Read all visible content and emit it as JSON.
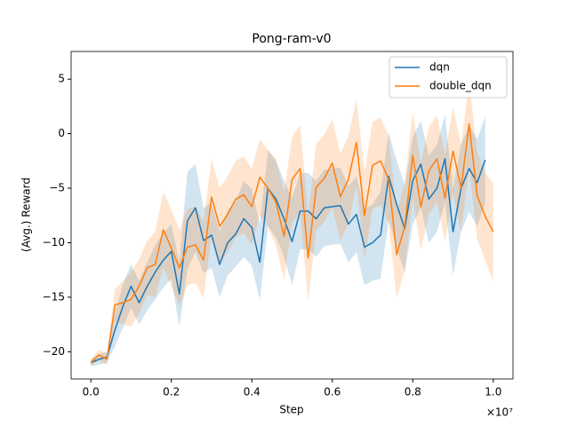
{
  "chart_data": {
    "type": "line",
    "title": "Pong-ram-v0",
    "xlabel": "Step",
    "ylabel": "(Avg.) Reward",
    "x_offset_label": "×10⁷",
    "x": [
      0,
      0.02,
      0.04,
      0.06,
      0.08,
      0.1,
      0.12,
      0.14,
      0.16,
      0.18,
      0.2,
      0.22,
      0.24,
      0.26,
      0.28,
      0.3,
      0.32,
      0.34,
      0.36,
      0.38,
      0.4,
      0.42,
      0.44,
      0.46,
      0.48,
      0.5,
      0.52,
      0.54,
      0.56,
      0.58,
      0.6,
      0.62,
      0.64,
      0.66,
      0.68,
      0.7,
      0.72,
      0.74,
      0.76,
      0.78,
      0.8,
      0.82,
      0.84,
      0.86,
      0.88,
      0.9,
      0.92,
      0.94,
      0.96,
      0.98,
      1.0
    ],
    "series": [
      {
        "name": "dqn",
        "color": "#1f77b4",
        "values": [
          -21,
          -20.7,
          -20.5,
          -18,
          -15.8,
          -14,
          -15.5,
          -14,
          -12.7,
          -11.6,
          -10.8,
          -14.7,
          -8,
          -6.8,
          -9.8,
          -9.3,
          -12,
          -10,
          -9.2,
          -7.8,
          -8.6,
          -11.8,
          -5,
          -6,
          -7.8,
          -9.9,
          -7.1,
          -7.1,
          -7.8,
          -6.8,
          -6.7,
          -6.6,
          -8.3,
          -7.4,
          -10.4,
          -10,
          -9.3,
          -3.9,
          -6.5,
          -8.7,
          -4.3,
          -2.8,
          -6,
          -5,
          -2.3,
          -9,
          -5,
          -3.2,
          -4.5,
          -2.4,
          null
        ],
        "lower": [
          -21.3,
          -21.2,
          -21,
          -19.5,
          -17.8,
          -16,
          -17.5,
          -16.2,
          -15.2,
          -14.1,
          -13.3,
          -17.7,
          -12.5,
          -10.8,
          -12.8,
          -12.3,
          -15,
          -13,
          -12.2,
          -11.3,
          -12.1,
          -15.3,
          -8.5,
          -9.5,
          -11.3,
          -13.9,
          -10.6,
          -10.6,
          -11.3,
          -10.3,
          -10.2,
          -10.1,
          -11.8,
          -10.9,
          -13.9,
          -13.5,
          -13.3,
          -7.9,
          -10.5,
          -12.7,
          -8.3,
          -6.8,
          -10,
          -9,
          -6.3,
          -13,
          -9,
          -7.2,
          -8.5,
          -6.4,
          null
        ],
        "upper": [
          -20.7,
          -20.2,
          -20,
          -16.5,
          -13.8,
          -12,
          -13.5,
          -11.8,
          -10.2,
          -9.1,
          -8.3,
          -11.7,
          -3.5,
          -2.8,
          -6.8,
          -6.3,
          -9,
          -7,
          -6.2,
          -4.3,
          -5.1,
          -8.3,
          -1.5,
          -2.5,
          -4.3,
          -5.9,
          -3.6,
          -3.6,
          -4.3,
          -3.3,
          -3.2,
          -3.1,
          -4.8,
          -3.9,
          -6.9,
          -6.5,
          -5.3,
          0.1,
          -2.5,
          -4.7,
          -0.3,
          1.2,
          -2,
          -1,
          1.7,
          -5,
          -1,
          0.8,
          -0.5,
          1.6,
          null
        ]
      },
      {
        "name": "double_dqn",
        "color": "#ff7f0e",
        "values": [
          -21,
          -20.3,
          -20.7,
          -15.7,
          -15.5,
          -15.2,
          -14,
          -12.3,
          -12,
          -8.8,
          -10.5,
          -12.3,
          -10.4,
          -10.2,
          -11.6,
          -5.8,
          -8.5,
          -7.4,
          -6,
          -5.6,
          -6.7,
          -4,
          -5,
          -6.3,
          -9.4,
          -4.2,
          -3.2,
          -11.4,
          -4.9,
          -4.1,
          -2.7,
          -5.8,
          -4.2,
          -0.8,
          -7.5,
          -2.9,
          -2.5,
          -4.2,
          -11.1,
          -8.5,
          -2,
          -6.7,
          -3.4,
          -2.3,
          -5.9,
          -1.6,
          -5,
          0.9,
          -5.7,
          -7.6,
          -9
        ],
        "lower": [
          -21.3,
          -20.8,
          -21.2,
          -17.2,
          -17.5,
          -17.7,
          -16.5,
          -14.8,
          -15,
          -12.3,
          -14,
          -15.8,
          -13.9,
          -13.7,
          -15.1,
          -9.3,
          -12,
          -10.9,
          -9.5,
          -9.1,
          -10.2,
          -7.5,
          -8.5,
          -10.3,
          -13.4,
          -8.2,
          -7.2,
          -15.4,
          -8.9,
          -8.1,
          -6.7,
          -9.8,
          -8.2,
          -4.8,
          -11.5,
          -6.9,
          -6.5,
          -8.2,
          -15.1,
          -12.5,
          -6,
          -10.7,
          -7.4,
          -6.3,
          -9.9,
          -5.6,
          -9,
          -3.1,
          -9.7,
          -11.6,
          -13.5
        ],
        "upper": [
          -20.7,
          -19.8,
          -20.2,
          -14.2,
          -13.5,
          -12.7,
          -11.5,
          -9.8,
          -9,
          -5.3,
          -7,
          -8.8,
          -6.9,
          -6.7,
          -8.1,
          -2.3,
          -5,
          -3.9,
          -2.5,
          -2.1,
          -3.2,
          -0.5,
          -1.5,
          -2.3,
          -5.4,
          -0.2,
          0.8,
          -7.4,
          -0.9,
          -0.1,
          1.3,
          -1.8,
          -0.2,
          3.2,
          -3.5,
          1.1,
          1.5,
          -0.2,
          -7.1,
          -4.5,
          2,
          -2.7,
          0.6,
          1.7,
          -1.9,
          2.4,
          -1,
          4.9,
          -1.7,
          -3.6,
          -4.5
        ]
      }
    ],
    "xlim": [
      -0.049,
      1.049
    ],
    "ylim": [
      -22.5,
      7.54
    ],
    "xticks": [
      {
        "value": 0,
        "label": "0.0"
      },
      0.2,
      0.4,
      0.6,
      0.8,
      {
        "value": 1,
        "label": "1.0"
      }
    ],
    "yticks": [
      {
        "value": -20,
        "label": "−20"
      },
      {
        "value": -15,
        "label": "−15"
      },
      {
        "value": -10,
        "label": "−10"
      },
      {
        "value": -5,
        "label": "−5"
      },
      0,
      5
    ],
    "legend": "upper right",
    "band_opacity": 0.2
  }
}
